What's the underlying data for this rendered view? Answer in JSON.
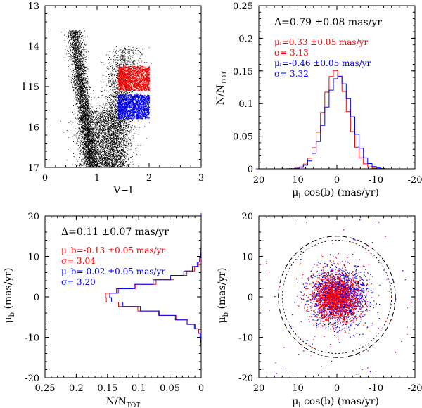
{
  "chart_data": [
    {
      "type": "scatter",
      "panel": "cmd",
      "xlabel": "V−I",
      "ylabel": "I",
      "xlim": [
        0,
        3
      ],
      "ylim": [
        17,
        13
      ],
      "y_inverted": true,
      "xticks": [
        "0",
        "1",
        "2",
        "3"
      ],
      "yticks": [
        "13",
        "14",
        "15",
        "16",
        "17"
      ],
      "series": [
        {
          "color": "#000000",
          "description_values": {
            "note": "dense field star population, disk MS near V-I 0.6-1.0 and red giant plume near V-I 1.3-2.0"
          }
        },
        {
          "color": "#ff0000",
          "selection_box": {
            "x": [
              1.4,
              2.0
            ],
            "y": [
              14.5,
              15.1
            ]
          }
        },
        {
          "color": "#0000ff",
          "selection_box": {
            "x": [
              1.4,
              2.0
            ],
            "y": [
              15.2,
              15.8
            ]
          }
        }
      ]
    },
    {
      "type": "line",
      "panel": "hist_l",
      "xlabel": "μ_l cos(b) (mas/yr)",
      "ylabel": "N/N_TOT",
      "xlim": [
        20,
        -20
      ],
      "ylim": [
        0,
        0.25
      ],
      "xticks": [
        "20",
        "10",
        "0",
        "-10",
        "-20"
      ],
      "yticks": [
        "0",
        "0.05",
        "0.1",
        "0.15",
        "0.2",
        "0.25"
      ],
      "annotations": {
        "delta": "Δ=0.79  ±0.08 mas/yr",
        "red_mu": "μₗ=0.33  ±0.05 mas/yr",
        "red_sigma": "σ=  3.13",
        "blue_mu": "μₗ=-0.46  ±0.05  mas/yr",
        "blue_sigma": "σ=  3.32"
      },
      "series": [
        {
          "color": "#ff0000",
          "mu": 0.33,
          "sigma": 3.13
        },
        {
          "color": "#0000ff",
          "mu": -0.46,
          "sigma": 3.32
        }
      ]
    },
    {
      "type": "line",
      "panel": "hist_b",
      "xlabel": "N/N_TOT",
      "ylabel": "μ_b (mas/yr)",
      "xlim": [
        0.25,
        0
      ],
      "ylim": [
        -20,
        20
      ],
      "xticks": [
        "0.25",
        "0.2",
        "0.15",
        "0.1",
        "0.05",
        "0"
      ],
      "yticks": [
        "-20",
        "-10",
        "0",
        "10",
        "20"
      ],
      "annotations": {
        "delta": "Δ=0.11  ±0.07 mas/yr",
        "red_mu": "μ_b=-0.13  ±0.05 mas/yr",
        "red_sigma": "σ=  3.04",
        "blue_mu": "μ_b=-0.02  ±0.05 mas/yr",
        "blue_sigma": "σ=  3.20"
      },
      "series": [
        {
          "color": "#ff0000",
          "mu": -0.13,
          "sigma": 3.04
        },
        {
          "color": "#0000ff",
          "mu": -0.02,
          "sigma": 3.2
        }
      ]
    },
    {
      "type": "scatter",
      "panel": "vpd",
      "xlabel": "μ_l cos(b) (mas/yr)",
      "ylabel": "μ_b (mas/yr)",
      "xlim": [
        20,
        -20
      ],
      "ylim": [
        -20,
        20
      ],
      "xticks": [
        "20",
        "10",
        "0",
        "-10",
        "-20"
      ],
      "yticks": [
        "-20",
        "-10",
        "0",
        "10",
        "20"
      ],
      "circles": [
        {
          "color": "#000000",
          "style": "dashed",
          "radius": 15
        },
        {
          "color": "#000000",
          "style": "dotted",
          "radius": 14
        }
      ],
      "series": [
        {
          "color": "#0000ff",
          "center": [
            -0.46,
            -0.02
          ],
          "sigma": [
            3.32,
            3.2
          ]
        },
        {
          "color": "#ff0000",
          "center": [
            0.33,
            -0.13
          ],
          "sigma": [
            3.13,
            3.04
          ]
        }
      ]
    }
  ]
}
